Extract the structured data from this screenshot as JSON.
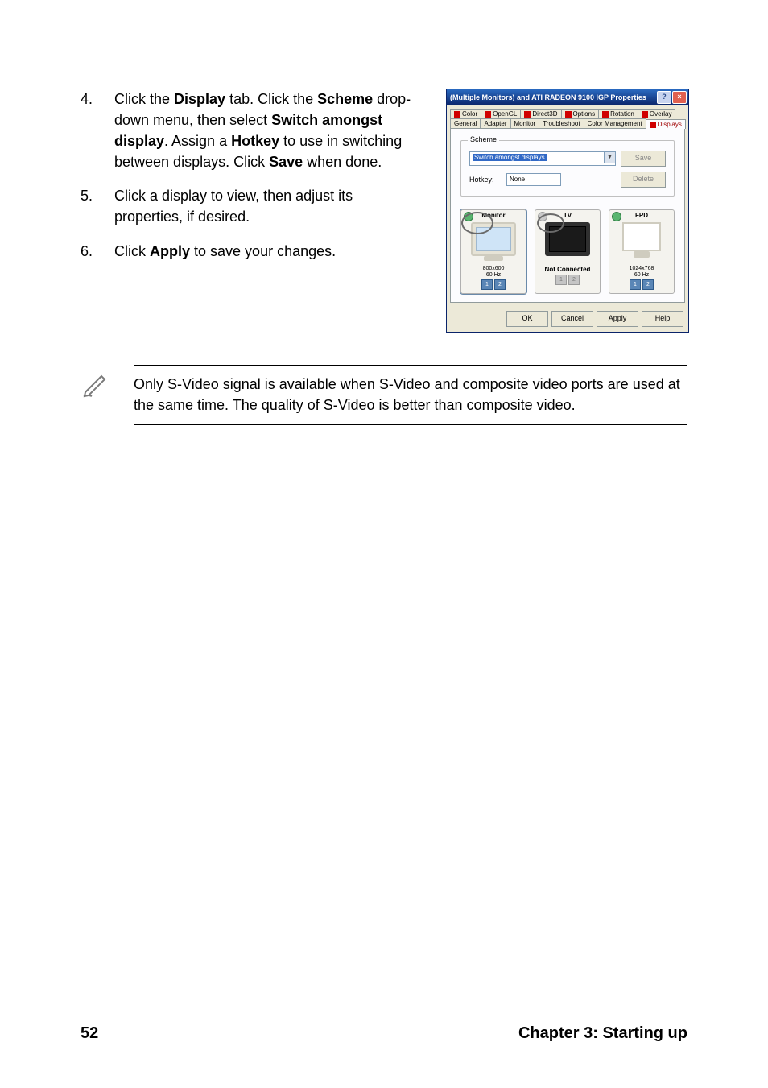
{
  "steps": [
    {
      "num": "4.",
      "html": "Click the <b>Display</b> tab. Click the <b>Scheme</b> drop-down menu, then select <b>Switch amongst display</b>. Assign a <b>Hotkey</b> to use in switching between displays. Click <b>Save</b> when done."
    },
    {
      "num": "5.",
      "html": "Click a display to view, then adjust its properties, if desired."
    },
    {
      "num": "6.",
      "html": "Click <b>Apply</b> to save your changes."
    }
  ],
  "dialog": {
    "title": "(Multiple Monitors) and ATI RADEON 9100 IGP Properties",
    "tabs_row1": [
      {
        "label": "Color",
        "ati": true
      },
      {
        "label": "OpenGL",
        "ati": true
      },
      {
        "label": "Direct3D",
        "ati": true
      },
      {
        "label": "Options",
        "ati": true
      },
      {
        "label": "Rotation",
        "ati": true
      },
      {
        "label": "Overlay",
        "ati": true
      }
    ],
    "tabs_row2": [
      {
        "label": "General",
        "ati": false
      },
      {
        "label": "Adapter",
        "ati": false
      },
      {
        "label": "Monitor",
        "ati": false
      },
      {
        "label": "Troubleshoot",
        "ati": false
      },
      {
        "label": "Color Management",
        "ati": false
      },
      {
        "label": "Displays",
        "ati": true,
        "active": true
      }
    ],
    "scheme": {
      "legend": "Scheme",
      "selected": "Switch amongst displays",
      "hotkey_label": "Hotkey:",
      "hotkey_value": "None",
      "save_btn": "Save",
      "delete_btn": "Delete"
    },
    "monitors": [
      {
        "name": "Monitor",
        "resolution": "800x600",
        "refresh": "60 Hz",
        "connected": true,
        "badges": [
          true,
          true
        ]
      },
      {
        "name": "TV",
        "resolution": "",
        "refresh": "",
        "connected": false,
        "not_connected_label": "Not Connected",
        "badges": [
          false,
          false
        ]
      },
      {
        "name": "FPD",
        "resolution": "1024x768",
        "refresh": "60 Hz",
        "connected": true,
        "badges": [
          true,
          true
        ]
      }
    ],
    "buttons": {
      "ok": "OK",
      "cancel": "Cancel",
      "apply": "Apply",
      "help": "Help"
    }
  },
  "note": "Only S-Video signal is available when S-Video and composite video ports are used at the same time. The quality of S-Video is better than composite video.",
  "footer": {
    "page": "52",
    "chapter": "Chapter 3: Starting up"
  },
  "colors": {
    "titlebar_gradient_top": "#2a6ac1",
    "titlebar_gradient_bottom": "#0a246a",
    "dialog_face": "#ece9d8",
    "panel_bg": "#fcfcfe",
    "select_highlight": "#3169c6",
    "ati_red": "#d00000",
    "power_green": "#59b56f",
    "badge_blue": "#5a86b6"
  }
}
